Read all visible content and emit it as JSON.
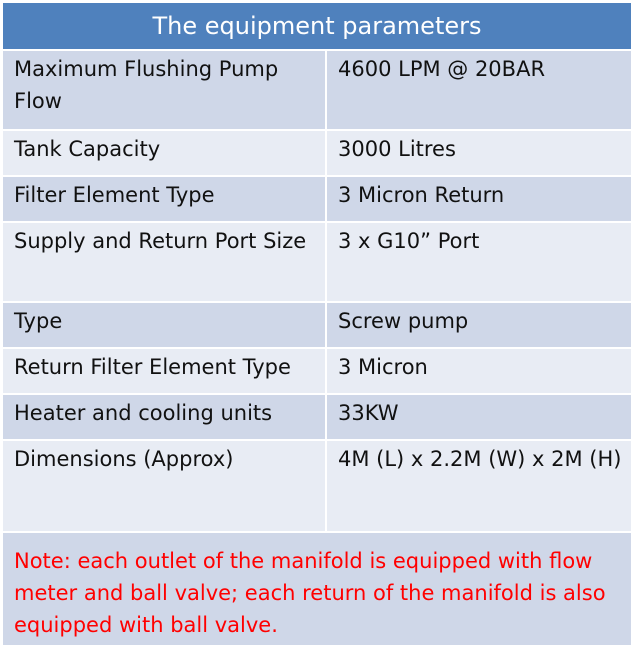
{
  "table": {
    "title": "The equipment parameters",
    "rows": [
      {
        "label": "Maximum Flushing Pump Flow",
        "value": "4600 LPM @ 20BAR"
      },
      {
        "label": "Tank Capacity",
        "value": "3000 Litres"
      },
      {
        "label": "Filter Element Type",
        "value": "3 Micron Return"
      },
      {
        "label": "Supply and Return Port Size",
        "value": "3 x G10” Port"
      },
      {
        "label": "Type",
        "value": "Screw pump"
      },
      {
        "label": "Return Filter Element Type",
        "value": "3 Micron"
      },
      {
        "label": "Heater and cooling units",
        "value": "33KW"
      },
      {
        "label": "Dimensions (Approx)",
        "value": "4M (L) x 2.2M (W) x 2M (H)"
      }
    ],
    "note": "Note: each outlet of the manifold is equipped with flow meter and ball valve; each return of the manifold is also equipped with ball valve."
  },
  "colors": {
    "header_bg": "#4f81bd",
    "row_dark": "#cfd7e8",
    "row_light": "#e8ecf4",
    "note_text": "#ff0000"
  }
}
